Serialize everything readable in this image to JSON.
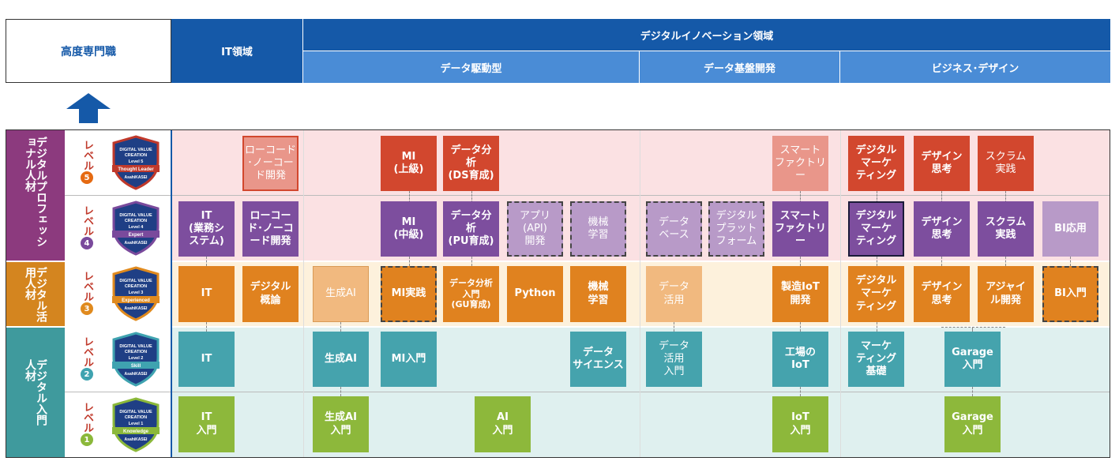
{
  "header": {
    "expert_label": "高度専門職",
    "it_domain": "IT領域",
    "innovation_domain": "デジタルイノベーション領域",
    "data_driven": "データ駆動型",
    "data_platform": "データ基盤開発",
    "business_design": "ビジネス･デザイン"
  },
  "categories": {
    "professional": "デジタルプロフェッショナル人材",
    "utilization": "デジタル活用人材",
    "entry": "デジタル入門人材"
  },
  "levels": [
    {
      "text": "レベル",
      "num": "5",
      "color": "#e56a12",
      "badge_level": "Level 5",
      "badge_rank": "Thought Leader",
      "badge_ribbon": "#c0392b",
      "badge_top": "DIGITAL VALUE",
      "badge_sub": "CREATION",
      "badge_brand": "AsahiKASEI"
    },
    {
      "text": "レベル",
      "num": "4",
      "color": "#7a4a9c",
      "badge_level": "Level 4",
      "badge_rank": "Expert",
      "badge_ribbon": "#7a4a9c",
      "badge_top": "DIGITAL VALUE",
      "badge_sub": "CREATION",
      "badge_brand": "AsahiKASEI"
    },
    {
      "text": "レベル",
      "num": "3",
      "color": "#e08a1e",
      "badge_level": "Level 3",
      "badge_rank": "Experienced",
      "badge_ribbon": "#e08a1e",
      "badge_top": "DIGITAL VALUE",
      "badge_sub": "CREATION",
      "badge_brand": "AsahiKASEI"
    },
    {
      "text": "レベル",
      "num": "2",
      "color": "#3fa3b0",
      "badge_level": "Level 2",
      "badge_rank": "Skill",
      "badge_ribbon": "#3fa3b0",
      "badge_top": "DIGITAL VALUE",
      "badge_sub": "CREATION",
      "badge_brand": "AsahiKASEI"
    },
    {
      "text": "レベル",
      "num": "1",
      "color": "#8bb83a",
      "badge_level": "Level 1",
      "badge_rank": "Knowledge",
      "badge_ribbon": "#8bb83a",
      "badge_top": "DIGITAL VALUE",
      "badge_sub": "CREATION",
      "badge_brand": "AsahiKASEI"
    }
  ],
  "colors": {
    "header_blue": "#1559a8",
    "sub_header_blue": "#4a8cd6",
    "level5_red": "#d2472e",
    "level5_light": "#e9968a",
    "level4_purple": "#7d4e9e",
    "level4_light": "#b89ac8",
    "level3_orange": "#e0821f",
    "level3_light": "#f1b97f",
    "level2_teal": "#45a3ad",
    "level1_green": "#8db83b"
  },
  "boxes": {
    "l5_lowcode": "ローコード\n･ノーコー\nド開発",
    "l5_mi": "MI\n(上級)",
    "l5_da": "データ分\n析\n(DS育成)",
    "l5_smart": "スマート\nファクトリ\nー",
    "l5_mkt": "デジタル\nマーケ\nティング",
    "l5_design": "デザイン\n思考",
    "l5_scrum": "スクラム\n実践",
    "l4_it": "IT\n(業務シ\nステム)",
    "l4_lowcode": "ローコー\nド･ノーコ\nード開発",
    "l4_mi": "MI\n(中級)",
    "l4_da": "データ分\n析\n(PU育成)",
    "l4_app": "アプリ\n(API)\n開発",
    "l4_ml": "機械\n学習",
    "l4_db": "データ\nベース",
    "l4_platform": "デジタル\nプラット\nフォーム",
    "l4_smart": "スマート\nファクトリ\nー",
    "l4_mkt": "デジタル\nマーケ\nティング",
    "l4_design": "デザイン\n思考",
    "l4_scrum": "スクラム\n実践",
    "l4_bi": "BI応用",
    "l3_it": "IT",
    "l3_concept": "デジタル\n概論",
    "l3_genai": "生成AI",
    "l3_mi": "MI実践",
    "l3_da": "データ分析\n入門\n(GU育成)",
    "l3_python": "Python",
    "l3_ml": "機械\n学習",
    "l3_data": "データ\n活用",
    "l3_iot": "製造IoT\n開発",
    "l3_mkt": "デジタル\nマーケ\nティング",
    "l3_design": "デザイン\n思考",
    "l3_agile": "アジャイ\nル開発",
    "l3_bi": "BI入門",
    "l2_it": "IT",
    "l2_genai": "生成AI",
    "l2_mi": "MI入門",
    "l2_ds": "データ\nサイエンス",
    "l2_data": "データ\n活用\n入門",
    "l2_iot": "工場の\nIoT",
    "l2_mkt": "マーケ\nティング\n基礎",
    "l2_garage": "Garage\n入門",
    "l1_it": "IT\n入門",
    "l1_genai": "生成AI\n入門",
    "l1_ai": "AI\n入門",
    "l1_iot": "IoT\n入門",
    "l1_garage": "Garage\n入門"
  }
}
